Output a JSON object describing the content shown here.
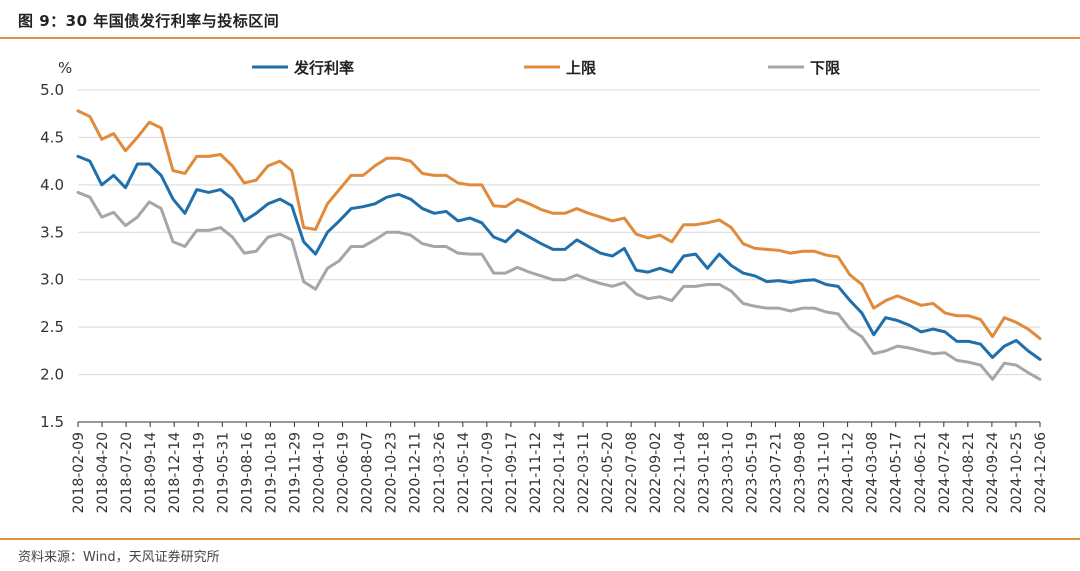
{
  "figure": {
    "title": "图 9：30 年国债发行利率与投标区间",
    "source": "资料来源：Wind，天风证券研究所"
  },
  "chart_data": {
    "type": "line",
    "unit": "%",
    "ylim": [
      1.5,
      5.0
    ],
    "yticks": [
      "5.0",
      "4.5",
      "4.0",
      "3.5",
      "3.0",
      "2.5",
      "2.0",
      "1.5"
    ],
    "x_tick_labels": [
      "2018-02-09",
      "2018-04-20",
      "2018-07-20",
      "2018-09-14",
      "2018-12-14",
      "2019-04-19",
      "2019-05-31",
      "2019-08-16",
      "2019-10-18",
      "2019-11-29",
      "2020-04-10",
      "2020-06-19",
      "2020-08-07",
      "2020-10-23",
      "2020-12-11",
      "2021-03-26",
      "2021-05-14",
      "2021-07-09",
      "2021-09-17",
      "2021-11-12",
      "2022-01-14",
      "2022-03-11",
      "2022-05-20",
      "2022-07-08",
      "2022-09-02",
      "2022-11-04",
      "2023-01-18",
      "2023-03-10",
      "2023-05-19",
      "2023-07-21",
      "2023-09-08",
      "2023-11-10",
      "2024-01-12",
      "2024-03-08",
      "2024-05-17",
      "2024-06-21",
      "2024-07-24",
      "2024-08-21",
      "2024-09-24",
      "2024-10-25",
      "2024-12-06"
    ],
    "grid": "horizontal",
    "legend_position": "top",
    "series": [
      {
        "name": "发行利率",
        "color": "#1f6fab",
        "values": [
          4.3,
          4.25,
          4.0,
          4.1,
          3.97,
          4.22,
          4.22,
          4.1,
          3.85,
          3.7,
          3.95,
          3.92,
          3.95,
          3.85,
          3.62,
          3.7,
          3.8,
          3.85,
          3.78,
          3.4,
          3.27,
          3.5,
          3.62,
          3.75,
          3.77,
          3.8,
          3.87,
          3.9,
          3.85,
          3.75,
          3.7,
          3.72,
          3.62,
          3.65,
          3.6,
          3.45,
          3.4,
          3.52,
          3.45,
          3.38,
          3.32,
          3.32,
          3.42,
          3.35,
          3.28,
          3.25,
          3.33,
          3.1,
          3.08,
          3.12,
          3.08,
          3.25,
          3.27,
          3.12,
          3.27,
          3.15,
          3.07,
          3.04,
          2.98,
          2.99,
          2.97,
          2.99,
          3.0,
          2.95,
          2.93,
          2.78,
          2.65,
          2.42,
          2.6,
          2.57,
          2.52,
          2.45,
          2.48,
          2.45,
          2.35,
          2.35,
          2.32,
          2.18,
          2.3,
          2.36,
          2.25,
          2.16
        ]
      },
      {
        "name": "上限",
        "color": "#e08a3c",
        "values": [
          4.78,
          4.72,
          4.48,
          4.54,
          4.36,
          4.5,
          4.66,
          4.6,
          4.15,
          4.12,
          4.3,
          4.3,
          4.32,
          4.2,
          4.02,
          4.05,
          4.2,
          4.25,
          4.15,
          3.55,
          3.53,
          3.8,
          3.95,
          4.1,
          4.1,
          4.2,
          4.28,
          4.28,
          4.25,
          4.12,
          4.1,
          4.1,
          4.02,
          4.0,
          4.0,
          3.78,
          3.77,
          3.85,
          3.8,
          3.74,
          3.7,
          3.7,
          3.75,
          3.7,
          3.66,
          3.62,
          3.65,
          3.48,
          3.44,
          3.47,
          3.4,
          3.58,
          3.58,
          3.6,
          3.63,
          3.55,
          3.38,
          3.33,
          3.32,
          3.31,
          3.28,
          3.3,
          3.3,
          3.26,
          3.24,
          3.05,
          2.95,
          2.7,
          2.78,
          2.83,
          2.78,
          2.73,
          2.75,
          2.65,
          2.62,
          2.62,
          2.58,
          2.4,
          2.6,
          2.55,
          2.48,
          2.38
        ]
      },
      {
        "name": "下限",
        "color": "#a6a6a6",
        "values": [
          3.92,
          3.87,
          3.66,
          3.71,
          3.57,
          3.66,
          3.82,
          3.75,
          3.4,
          3.35,
          3.52,
          3.52,
          3.55,
          3.45,
          3.28,
          3.3,
          3.45,
          3.48,
          3.42,
          2.98,
          2.9,
          3.12,
          3.2,
          3.35,
          3.35,
          3.42,
          3.5,
          3.5,
          3.47,
          3.38,
          3.35,
          3.35,
          3.28,
          3.27,
          3.27,
          3.07,
          3.07,
          3.13,
          3.08,
          3.04,
          3.0,
          3.0,
          3.05,
          3.0,
          2.96,
          2.93,
          2.97,
          2.85,
          2.8,
          2.82,
          2.78,
          2.93,
          2.93,
          2.95,
          2.95,
          2.88,
          2.75,
          2.72,
          2.7,
          2.7,
          2.67,
          2.7,
          2.7,
          2.66,
          2.64,
          2.48,
          2.4,
          2.22,
          2.25,
          2.3,
          2.28,
          2.25,
          2.22,
          2.23,
          2.15,
          2.13,
          2.1,
          1.95,
          2.12,
          2.1,
          2.02,
          1.95
        ]
      }
    ]
  }
}
